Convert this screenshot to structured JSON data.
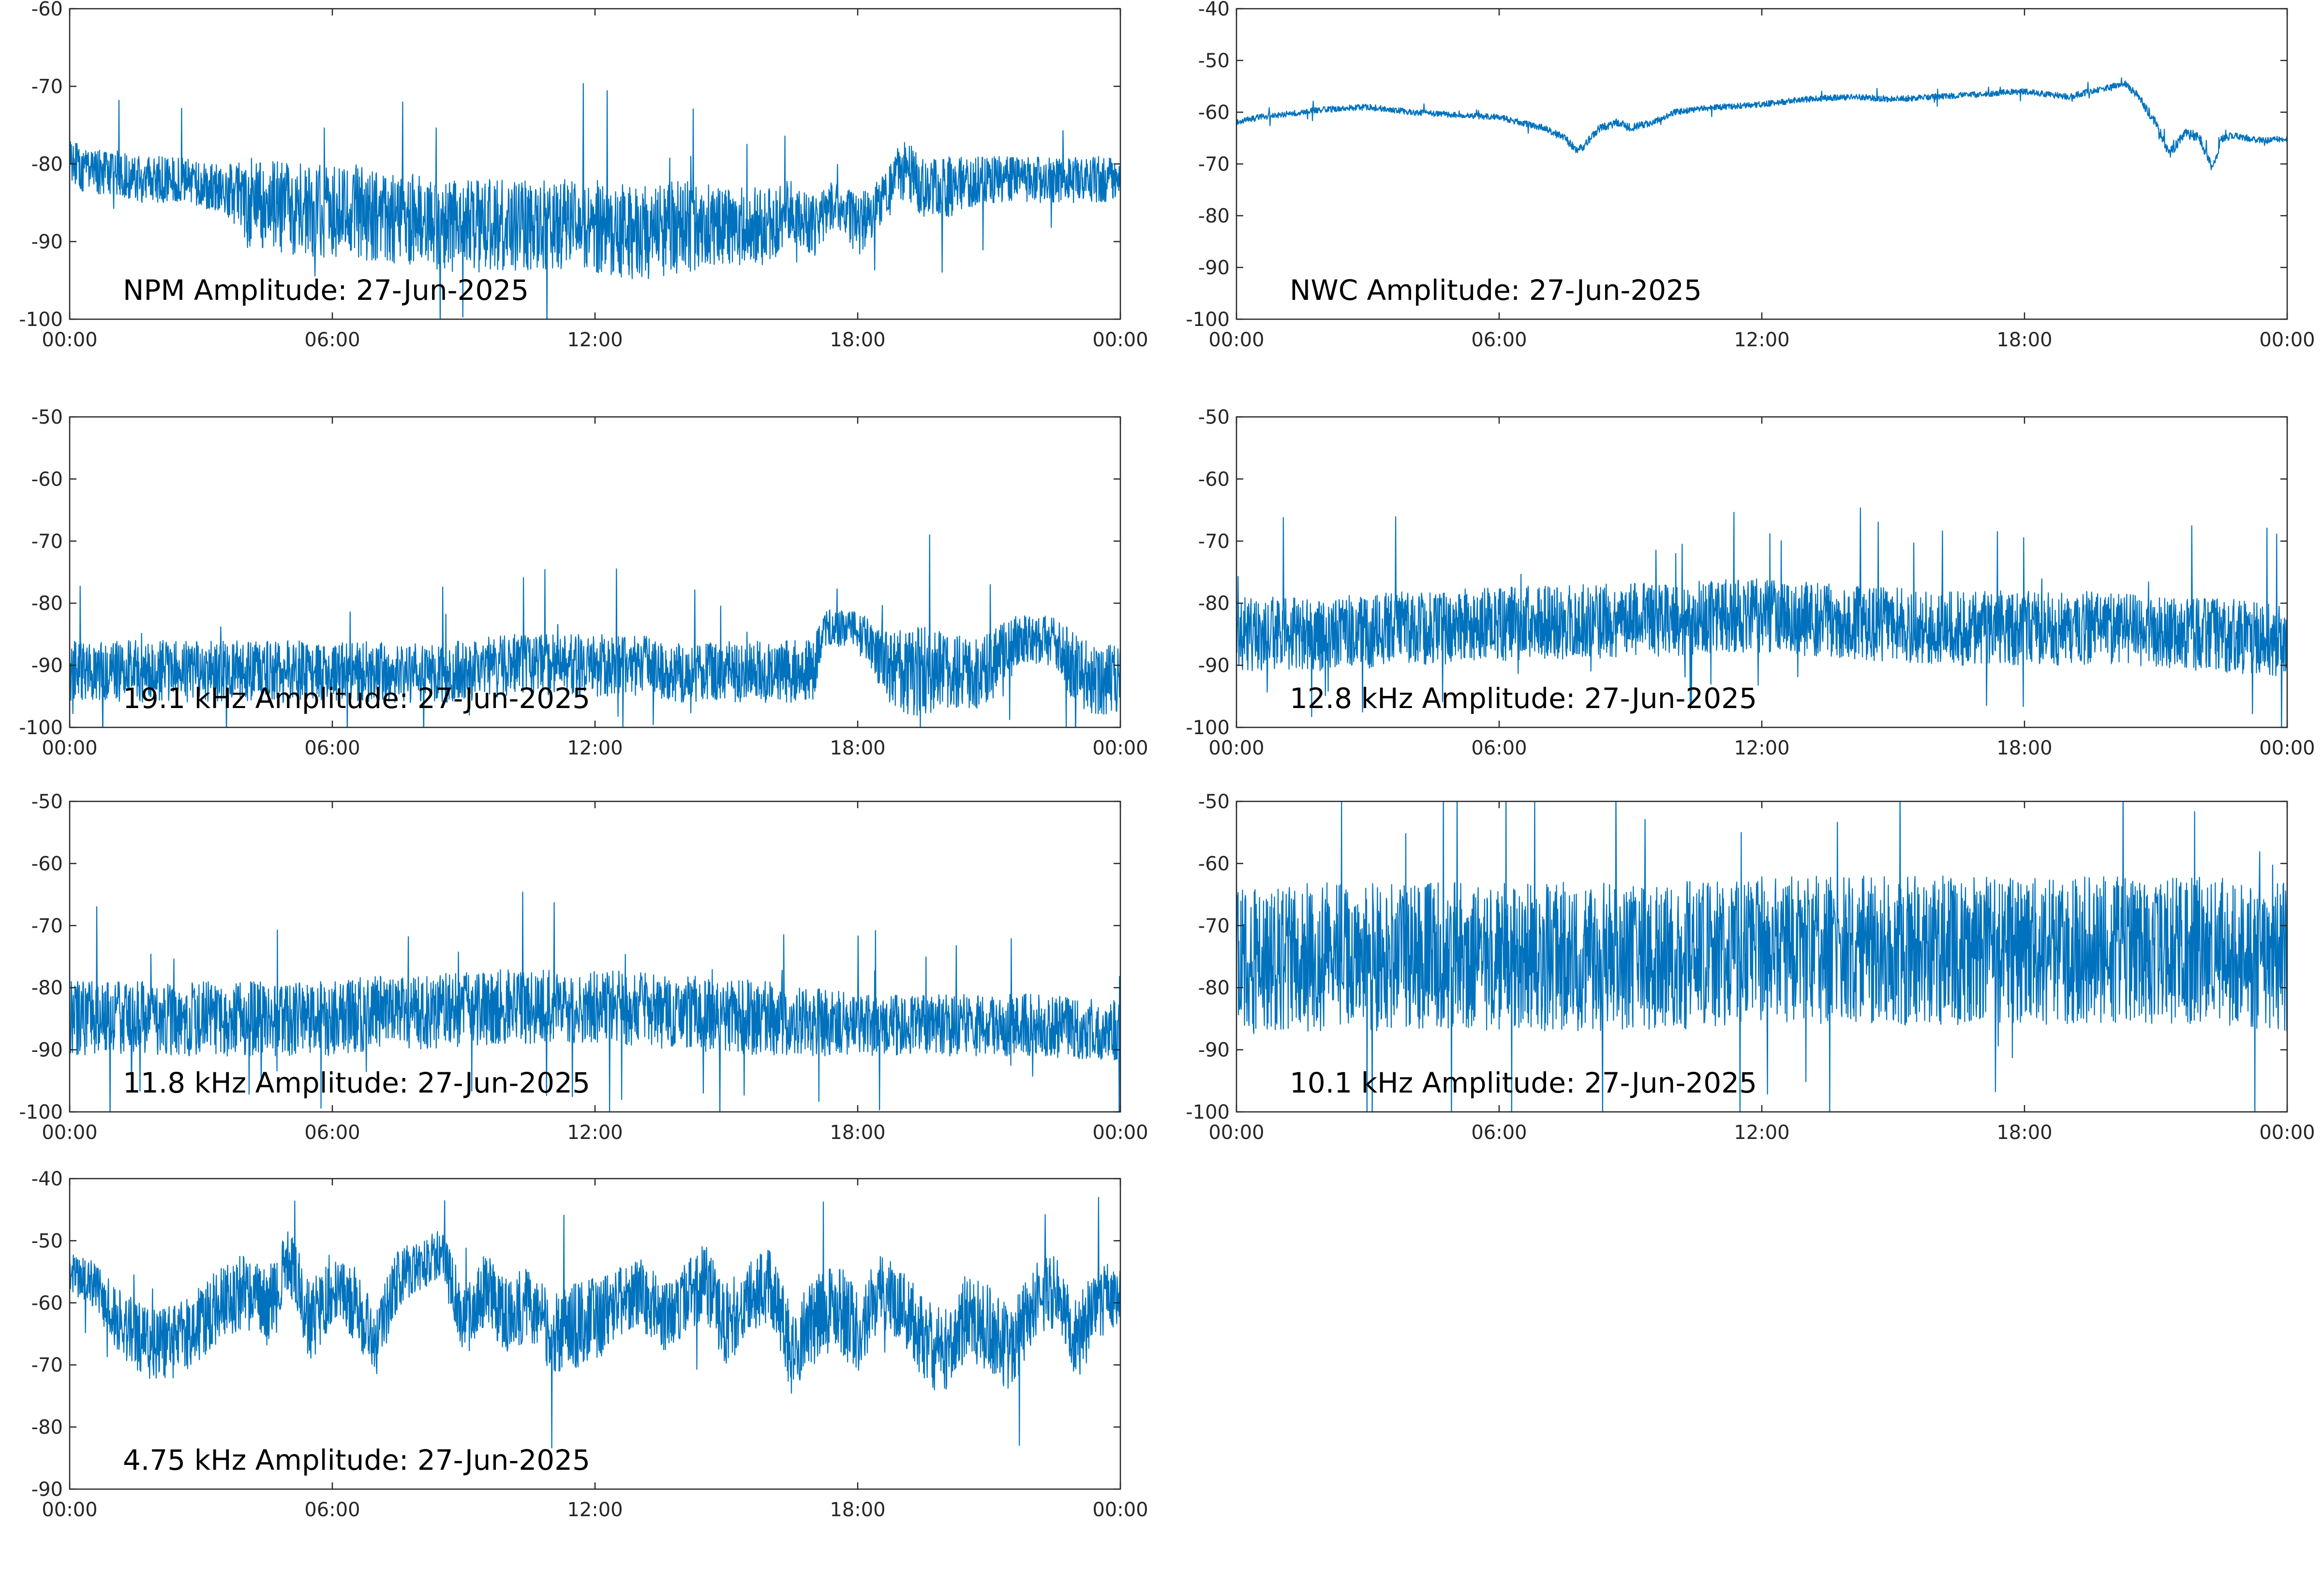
{
  "figure": {
    "line_color": "#0072BD",
    "axis_color": "#262626",
    "background": "#ffffff"
  },
  "chart_data": [
    {
      "type": "line",
      "title": "NPM Amplitude: 27-Jun-2025",
      "xlabel": "",
      "ylabel": "",
      "x_tick_labels": [
        "00:00",
        "06:00",
        "12:00",
        "18:00",
        "00:00"
      ],
      "xlim_hours": [
        0,
        24
      ],
      "ylim": [
        -100,
        -60
      ],
      "y_ticks": [
        -100,
        -90,
        -80,
        -70,
        -60
      ],
      "grid": false,
      "series": [
        {
          "x": [
            0,
            0.5,
            1,
            1.5,
            2,
            2.5,
            3,
            3.5,
            3.8,
            4,
            4.5,
            5,
            5.5,
            6,
            6.5,
            7,
            7.5,
            8,
            8.5,
            9,
            9.5,
            10,
            11,
            12,
            13,
            14,
            15,
            16,
            16.5,
            17,
            17.5,
            18,
            18.5,
            19,
            19.2,
            19.5,
            20,
            21,
            22,
            23,
            24
          ],
          "y": [
            -80,
            -81,
            -81,
            -82,
            -82,
            -82,
            -83,
            -83,
            -84,
            -85,
            -85,
            -86,
            -86,
            -86,
            -86,
            -87,
            -87,
            -87,
            -88,
            -88,
            -88,
            -88,
            -88,
            -88,
            -89,
            -88,
            -88,
            -88,
            -86,
            -88,
            -85,
            -88,
            -85,
            -81,
            -81,
            -83,
            -83,
            -82,
            -82,
            -82,
            -82
          ],
          "band": [
            3,
            3,
            3,
            3,
            3,
            3,
            3,
            3,
            4,
            6,
            6,
            6,
            6,
            6,
            6,
            6,
            6,
            6,
            6,
            6,
            6,
            6,
            6,
            6,
            6,
            6,
            5,
            5,
            4,
            4,
            3,
            4,
            3,
            4,
            4,
            4,
            4,
            3,
            3,
            3,
            3
          ]
        }
      ]
    },
    {
      "type": "line",
      "title": "NWC Amplitude: 27-Jun-2025",
      "xlabel": "",
      "ylabel": "",
      "x_tick_labels": [
        "00:00",
        "06:00",
        "12:00",
        "18:00",
        "00:00"
      ],
      "xlim_hours": [
        0,
        24
      ],
      "ylim": [
        -100,
        -40
      ],
      "y_ticks": [
        -100,
        -90,
        -80,
        -70,
        -60,
        -50,
        -40
      ],
      "grid": false,
      "series": [
        {
          "x": [
            0,
            0.5,
            1,
            1.5,
            2,
            3,
            4,
            5,
            6,
            7,
            7.5,
            7.8,
            8,
            8.3,
            8.7,
            9,
            9.5,
            10,
            11,
            12,
            13,
            14,
            15,
            16,
            17,
            18,
            19,
            20,
            20.3,
            20.6,
            21,
            21.3,
            21.5,
            21.7,
            22,
            22.3,
            22.5,
            22.8,
            23,
            23.5,
            24
          ],
          "y": [
            -62,
            -61,
            -60.5,
            -60,
            -59.5,
            -59,
            -60,
            -60.5,
            -61,
            -63,
            -65,
            -67.5,
            -66,
            -63,
            -62,
            -63,
            -62,
            -60,
            -59,
            -58.5,
            -57.5,
            -57,
            -57.5,
            -57,
            -56.5,
            -56,
            -57,
            -55,
            -54.5,
            -57,
            -62,
            -68,
            -66,
            -64,
            -65,
            -71,
            -65,
            -64.5,
            -65,
            -65.5,
            -65
          ],
          "band": [
            0.6,
            0.6,
            0.6,
            0.6,
            0.6,
            0.6,
            0.6,
            0.6,
            0.6,
            0.6,
            0.8,
            0.8,
            0.8,
            0.8,
            0.8,
            0.8,
            0.6,
            0.6,
            0.6,
            0.6,
            0.6,
            0.6,
            0.6,
            0.6,
            0.6,
            0.6,
            0.6,
            0.6,
            0.6,
            0.8,
            1,
            1,
            1,
            1,
            1,
            1,
            0.8,
            0.6,
            0.6,
            0.6,
            0.6
          ]
        }
      ]
    },
    {
      "type": "line",
      "title": "19.1 kHz Amplitude: 27-Jun-2025",
      "xlabel": "",
      "ylabel": "",
      "x_tick_labels": [
        "00:00",
        "06:00",
        "12:00",
        "18:00",
        "00:00"
      ],
      "xlim_hours": [
        0,
        24
      ],
      "ylim": [
        -100,
        -50
      ],
      "y_ticks": [
        -100,
        -90,
        -80,
        -70,
        -60,
        -50
      ],
      "grid": false,
      "series": [
        {
          "x": [
            0,
            1,
            2,
            3,
            4,
            5,
            6,
            7,
            8,
            9,
            10,
            11,
            12,
            13,
            14,
            15,
            16,
            17,
            17.2,
            18,
            18.8,
            19.3,
            19.7,
            20,
            21,
            21.5,
            21.8,
            22.5,
            23,
            24
          ],
          "y": [
            -91,
            -91,
            -91,
            -91,
            -91,
            -91,
            -91,
            -91,
            -91,
            -91,
            -90,
            -90,
            -90,
            -90,
            -91,
            -91,
            -91,
            -91,
            -84,
            -84,
            -91,
            -91,
            -91,
            -91,
            -91,
            -86,
            -86,
            -86,
            -91,
            -93
          ],
          "band": [
            5,
            5,
            5,
            5,
            5,
            5,
            5,
            5,
            5,
            5,
            5,
            5,
            5,
            5,
            5,
            5,
            5,
            5,
            3,
            3,
            6,
            8,
            7,
            6,
            6,
            4,
            4,
            4,
            6,
            6
          ]
        }
      ]
    },
    {
      "type": "line",
      "title": "12.8 kHz Amplitude: 27-Jun-2025",
      "xlabel": "",
      "ylabel": "",
      "x_tick_labels": [
        "00:00",
        "06:00",
        "12:00",
        "18:00",
        "00:00"
      ],
      "xlim_hours": [
        0,
        24
      ],
      "ylim": [
        -100,
        -50
      ],
      "y_ticks": [
        -100,
        -90,
        -80,
        -70,
        -60,
        -50
      ],
      "grid": false,
      "series": [
        {
          "x": [
            0,
            2,
            4,
            6,
            7,
            8,
            10,
            12,
            14,
            16,
            18,
            20,
            22,
            24
          ],
          "y": [
            -85,
            -85,
            -84,
            -83.5,
            -83,
            -83,
            -82.5,
            -82,
            -83,
            -84,
            -84,
            -84,
            -85,
            -86
          ],
          "band": [
            6,
            6,
            6,
            6,
            6,
            6,
            6,
            6,
            6,
            6,
            6,
            6,
            6,
            6
          ]
        }
      ]
    },
    {
      "type": "line",
      "title": "11.8 kHz Amplitude: 27-Jun-2025",
      "xlabel": "",
      "ylabel": "",
      "x_tick_labels": [
        "00:00",
        "06:00",
        "12:00",
        "18:00",
        "00:00"
      ],
      "xlim_hours": [
        0,
        24
      ],
      "ylim": [
        -100,
        -50
      ],
      "y_ticks": [
        -100,
        -90,
        -80,
        -70,
        -60,
        -50
      ],
      "grid": false,
      "series": [
        {
          "x": [
            0,
            2,
            4,
            6,
            7,
            8,
            10,
            12,
            14,
            16,
            18,
            20,
            22,
            24
          ],
          "y": [
            -85,
            -85,
            -85,
            -85,
            -84,
            -84,
            -83,
            -83,
            -84,
            -85,
            -86,
            -86,
            -86,
            -87
          ],
          "band": [
            6,
            6,
            6,
            6,
            6,
            6,
            6,
            6,
            6,
            6,
            5,
            5,
            5,
            5
          ]
        }
      ]
    },
    {
      "type": "line",
      "title": "10.1 kHz Amplitude: 27-Jun-2025",
      "xlabel": "",
      "ylabel": "",
      "x_tick_labels": [
        "00:00",
        "06:00",
        "12:00",
        "18:00",
        "00:00"
      ],
      "xlim_hours": [
        0,
        24
      ],
      "ylim": [
        -100,
        -50
      ],
      "y_ticks": [
        -100,
        -90,
        -80,
        -70,
        -60,
        -50
      ],
      "grid": false,
      "series": [
        {
          "x": [
            0,
            2,
            4,
            6,
            8,
            10,
            12,
            14,
            16,
            18,
            20,
            22,
            24
          ],
          "y": [
            -76,
            -75,
            -75,
            -75,
            -75,
            -75,
            -74,
            -74,
            -74,
            -74,
            -74,
            -74,
            -75
          ],
          "band": [
            12,
            12,
            12,
            12,
            12,
            12,
            12,
            12,
            12,
            12,
            12,
            12,
            12
          ]
        }
      ]
    },
    {
      "type": "line",
      "title": "4.75 kHz Amplitude: 27-Jun-2025",
      "xlabel": "",
      "ylabel": "",
      "x_tick_labels": [
        "00:00",
        "06:00",
        "12:00",
        "18:00",
        "00:00"
      ],
      "xlim_hours": [
        0,
        24
      ],
      "ylim": [
        -90,
        -40
      ],
      "y_ticks": [
        -90,
        -80,
        -70,
        -60,
        -50,
        -40
      ],
      "grid": false,
      "series": [
        {
          "x": [
            0,
            0.5,
            1,
            1.5,
            2,
            2.5,
            3,
            3.5,
            4,
            4.5,
            5,
            5.5,
            6,
            6.5,
            7,
            7.5,
            8,
            8.5,
            9,
            9.5,
            10,
            10.5,
            11,
            11.5,
            12,
            12.5,
            13,
            13.5,
            14,
            14.5,
            15,
            15.5,
            16,
            16.5,
            17,
            17.5,
            18,
            18.5,
            19,
            19.5,
            20,
            20.5,
            21,
            21.5,
            22,
            22.5,
            23,
            23.5,
            24
          ],
          "y": [
            -55,
            -57,
            -62,
            -65,
            -67,
            -66,
            -63,
            -60,
            -58,
            -61,
            -53,
            -63,
            -58,
            -60,
            -66,
            -56,
            -54,
            -52,
            -63,
            -58,
            -62,
            -60,
            -66,
            -64,
            -63,
            -60,
            -58,
            -62,
            -60,
            -56,
            -64,
            -59,
            -57,
            -68,
            -63,
            -60,
            -65,
            -58,
            -60,
            -66,
            -68,
            -62,
            -64,
            -68,
            -60,
            -58,
            -66,
            -60,
            -58
          ],
          "band": [
            3,
            4,
            5,
            6,
            6,
            6,
            6,
            6,
            6,
            6,
            5,
            7,
            5,
            6,
            6,
            5,
            4,
            4,
            6,
            6,
            6,
            6,
            7,
            7,
            7,
            6,
            6,
            6,
            6,
            6,
            7,
            6,
            6,
            7,
            7,
            7,
            7,
            6,
            6,
            7,
            7,
            7,
            7,
            7,
            6,
            6,
            7,
            6,
            5
          ]
        }
      ]
    }
  ]
}
